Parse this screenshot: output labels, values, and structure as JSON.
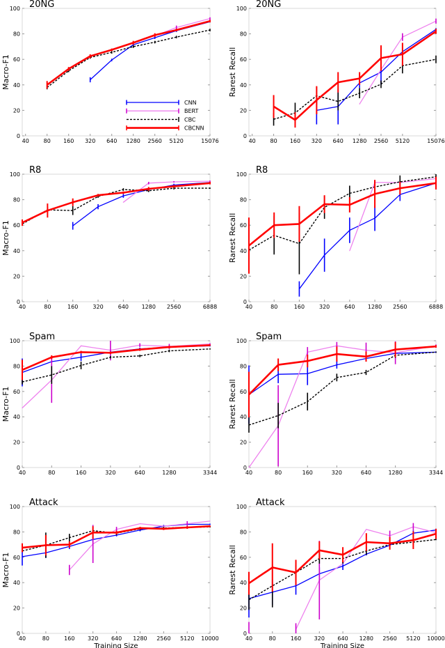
{
  "legend": {
    "location": "lower-right of first panel",
    "entries": [
      {
        "name": "CNN",
        "color": "#0000ff",
        "style": "solid"
      },
      {
        "name": "BERT",
        "color": "#ee82ee",
        "error_color": "#cc00cc",
        "style": "solid"
      },
      {
        "name": "CBC",
        "color": "#000000",
        "style": "dashed"
      },
      {
        "name": "CBCNN",
        "color": "#ff0000",
        "style": "solid-thick"
      }
    ]
  },
  "chart_data": [
    {
      "type": "line",
      "title": "20NG",
      "ylabel": "Macro-F1",
      "xlabel": "",
      "xscale": "log",
      "xlim": [
        36,
        15076
      ],
      "ylim": [
        0,
        100
      ],
      "grid": false,
      "x": [
        40,
        80,
        160,
        320,
        640,
        1280,
        2560,
        5120,
        15076
      ],
      "xtick_labels": [
        "40",
        "80",
        "160",
        "320",
        "640",
        "1280",
        "2560",
        "5120",
        "15076"
      ],
      "yticks": [
        0,
        20,
        40,
        60,
        80,
        100
      ],
      "series": [
        {
          "name": "CNN",
          "values": [
            null,
            null,
            null,
            44,
            59.5,
            71.5,
            77,
            82.5,
            89.5
          ],
          "err": [
            null,
            null,
            null,
            2,
            1,
            1,
            1,
            1,
            0.5
          ]
        },
        {
          "name": "BERT",
          "values": [
            null,
            null,
            null,
            null,
            null,
            null,
            78.5,
            85,
            92
          ],
          "err": [
            null,
            null,
            null,
            null,
            null,
            null,
            1,
            1.5,
            1
          ]
        },
        {
          "name": "CBC",
          "values": [
            null,
            38,
            51,
            61.5,
            65.5,
            70,
            73.5,
            77.5,
            83
          ],
          "err": [
            null,
            1.5,
            1,
            1,
            1,
            1,
            1,
            1,
            1
          ]
        },
        {
          "name": "CBCNN",
          "values": [
            null,
            40,
            52.5,
            62.5,
            67.5,
            73,
            79,
            83,
            90
          ],
          "err": [
            null,
            3,
            1.5,
            1.5,
            1,
            1.5,
            1.5,
            1,
            1
          ]
        }
      ]
    },
    {
      "type": "line",
      "title": "20NG",
      "ylabel": "Rarest Recall",
      "xlabel": "",
      "xscale": "log",
      "xlim": [
        36,
        15076
      ],
      "ylim": [
        0,
        100
      ],
      "grid": false,
      "x": [
        40,
        80,
        160,
        320,
        640,
        1280,
        2560,
        5120,
        15076
      ],
      "xtick_labels": [
        "40",
        "80",
        "160",
        "320",
        "640",
        "1280",
        "2560",
        "5120",
        "15076"
      ],
      "yticks": [
        0,
        20,
        40,
        60,
        80,
        100
      ],
      "series": [
        {
          "name": "CNN",
          "values": [
            null,
            null,
            null,
            20,
            23,
            41.5,
            50,
            66,
            83.5
          ],
          "err": [
            null,
            null,
            null,
            11,
            14,
            4,
            10,
            6,
            1
          ]
        },
        {
          "name": "BERT",
          "values": [
            null,
            null,
            null,
            null,
            null,
            25,
            52,
            77.5,
            90
          ],
          "err": [
            null,
            null,
            null,
            null,
            null,
            null,
            null,
            3,
            2
          ]
        },
        {
          "name": "CBC",
          "values": [
            null,
            13,
            18,
            31.5,
            27,
            33.5,
            40.5,
            55,
            60
          ],
          "err": [
            null,
            5,
            8,
            7,
            7,
            4,
            3,
            6,
            3
          ]
        },
        {
          "name": "CBCNN",
          "values": [
            null,
            23,
            12.5,
            28,
            42,
            45,
            61,
            64,
            82
          ],
          "err": [
            null,
            9,
            6,
            11,
            8,
            5,
            10,
            9,
            2
          ]
        }
      ]
    },
    {
      "type": "line",
      "title": "R8",
      "ylabel": "Macro-F1",
      "xlabel": "",
      "xscale": "log",
      "xlim": [
        40,
        6888
      ],
      "ylim": [
        0,
        100
      ],
      "grid": false,
      "x": [
        40,
        80,
        160,
        320,
        640,
        1280,
        2560,
        6888
      ],
      "xtick_labels": [
        "40",
        "80",
        "160",
        "320",
        "640",
        "1280",
        "2560",
        "6888"
      ],
      "yticks": [
        0,
        20,
        40,
        60,
        80,
        100
      ],
      "series": [
        {
          "name": "CNN",
          "values": [
            null,
            null,
            59.5,
            74.5,
            83,
            88,
            91.5,
            93.5
          ],
          "err": [
            null,
            null,
            3,
            2,
            1.5,
            1,
            1,
            0.5
          ]
        },
        {
          "name": "BERT",
          "values": [
            null,
            null,
            null,
            null,
            78,
            93,
            94,
            94.5
          ],
          "err": [
            null,
            null,
            null,
            null,
            null,
            1,
            0.5,
            0.5
          ]
        },
        {
          "name": "CBC",
          "values": [
            61,
            72,
            71.5,
            82.5,
            88,
            87,
            89,
            89
          ],
          "err": [
            1,
            2,
            3.5,
            1,
            1,
            1,
            1,
            0.5
          ]
        },
        {
          "name": "CBCNN",
          "values": [
            62,
            71.5,
            78,
            83.5,
            85.5,
            88.5,
            90.5,
            93
          ],
          "err": [
            2.5,
            5.5,
            3,
            1,
            1,
            1.5,
            1,
            1
          ]
        }
      ]
    },
    {
      "type": "line",
      "title": "R8",
      "ylabel": "Rarest Recall",
      "xlabel": "",
      "xscale": "log",
      "xlim": [
        40,
        6888
      ],
      "ylim": [
        0,
        100
      ],
      "grid": false,
      "x": [
        40,
        80,
        160,
        320,
        640,
        1280,
        2560,
        6888
      ],
      "xtick_labels": [
        "40",
        "80",
        "160",
        "320",
        "640",
        "1280",
        "2560",
        "6888"
      ],
      "yticks": [
        0,
        20,
        40,
        60,
        80,
        100
      ],
      "series": [
        {
          "name": "CNN",
          "values": [
            null,
            null,
            10,
            36.5,
            56,
            65.5,
            84,
            93
          ],
          "err": [
            null,
            null,
            6,
            13,
            10,
            10,
            5,
            1
          ]
        },
        {
          "name": "BERT",
          "values": [
            null,
            null,
            null,
            null,
            40,
            93.5,
            93.5,
            96.5
          ],
          "err": [
            null,
            null,
            null,
            null,
            null,
            2,
            1,
            1
          ]
        },
        {
          "name": "CBC",
          "values": [
            40.5,
            52,
            45.5,
            74,
            85,
            90,
            94,
            98
          ],
          "err": [
            15,
            15,
            24,
            9,
            6,
            5,
            5,
            2
          ]
        },
        {
          "name": "CBCNN",
          "values": [
            44,
            60,
            61,
            76.5,
            76,
            84.5,
            89,
            93
          ],
          "err": [
            22,
            10,
            14,
            7,
            6,
            11,
            5,
            5
          ]
        }
      ]
    },
    {
      "type": "line",
      "title": "Spam",
      "ylabel": "Macro-F1",
      "xlabel": "",
      "xscale": "log",
      "xlim": [
        40,
        3344
      ],
      "ylim": [
        0,
        100
      ],
      "grid": false,
      "x": [
        40,
        80,
        160,
        320,
        640,
        1280,
        3344
      ],
      "xtick_labels": [
        "40",
        "80",
        "160",
        "320",
        "640",
        "1280",
        "3344"
      ],
      "yticks": [
        0,
        20,
        40,
        60,
        80,
        100
      ],
      "series": [
        {
          "name": "CNN",
          "values": [
            75,
            83.5,
            87,
            91,
            93.5,
            95,
            96
          ],
          "err": [
            11,
            1,
            3,
            1,
            1,
            1,
            0.5
          ]
        },
        {
          "name": "BERT",
          "values": [
            47,
            69,
            96,
            92.5,
            96.5,
            95.5,
            97.5
          ],
          "err": [
            null,
            18,
            null,
            8,
            1.5,
            2,
            0.5
          ]
        },
        {
          "name": "CBC",
          "values": [
            67.5,
            73,
            80.5,
            87,
            88,
            92,
            93.5
          ],
          "err": [
            2,
            7,
            3,
            1,
            1,
            1,
            0.5
          ]
        },
        {
          "name": "CBCNN",
          "values": [
            77,
            87,
            91,
            90.5,
            93,
            95,
            96.5
          ],
          "err": [
            8,
            1.5,
            1,
            1,
            1,
            1,
            0.5
          ]
        }
      ]
    },
    {
      "type": "line",
      "title": "Spam",
      "ylabel": "Rarest Recall",
      "xlabel": "",
      "xscale": "log",
      "xlim": [
        40,
        3344
      ],
      "ylim": [
        0,
        100
      ],
      "grid": false,
      "x": [
        40,
        80,
        160,
        320,
        640,
        1280,
        3344
      ],
      "xtick_labels": [
        "40",
        "80",
        "160",
        "320",
        "640",
        "1280",
        "3344"
      ],
      "yticks": [
        0,
        20,
        40,
        60,
        80,
        100
      ],
      "series": [
        {
          "name": "CNN",
          "values": [
            57.5,
            73.5,
            74,
            81,
            86,
            90,
            91
          ],
          "err": [
            23,
            7,
            9,
            3,
            2,
            2,
            0.5
          ]
        },
        {
          "name": "BERT",
          "values": [
            0,
            33,
            91,
            96,
            92.5,
            90.5,
            96
          ],
          "err": [
            null,
            32,
            4,
            3,
            6,
            9,
            1
          ]
        },
        {
          "name": "CBC",
          "values": [
            33.5,
            41,
            52,
            71,
            75,
            88.5,
            91
          ],
          "err": [
            6,
            10,
            7,
            3,
            2,
            2,
            0.5
          ]
        },
        {
          "name": "CBCNN",
          "values": [
            57.5,
            81,
            84,
            89.5,
            87.5,
            93,
            95.5
          ],
          "err": [
            18,
            5,
            5,
            6,
            4,
            6,
            1
          ]
        }
      ]
    },
    {
      "type": "line",
      "title": "Attack",
      "ylabel": "Macro-F1",
      "xlabel": "Training Size",
      "xscale": "log",
      "xlim": [
        40,
        10000
      ],
      "ylim": [
        0,
        100
      ],
      "grid": false,
      "x": [
        40,
        80,
        160,
        320,
        640,
        1280,
        2560,
        5120,
        10000
      ],
      "xtick_labels": [
        "40",
        "80",
        "160",
        "320",
        "640",
        "1280",
        "2560",
        "5120",
        "10000"
      ],
      "yticks": [
        0,
        20,
        40,
        60,
        80,
        100
      ],
      "series": [
        {
          "name": "CNN",
          "values": [
            60.5,
            63.5,
            68.5,
            74,
            77.5,
            81.5,
            84.5,
            86,
            86
          ],
          "err": [
            7,
            4,
            2,
            2,
            1,
            1,
            1,
            1,
            0.5
          ]
        },
        {
          "name": "BERT",
          "values": [
            null,
            null,
            50,
            70.5,
            82,
            86.5,
            84.5,
            86.5,
            88.5
          ],
          "err": [
            null,
            null,
            4,
            15,
            2,
            null,
            null,
            2,
            null
          ]
        },
        {
          "name": "CBC",
          "values": [
            65,
            69.5,
            75.5,
            81,
            79,
            82.5,
            83,
            83.5,
            84
          ],
          "err": [
            null,
            10,
            3,
            1,
            1.5,
            1,
            1,
            1,
            0.5
          ]
        },
        {
          "name": "CBCNN",
          "values": [
            67.5,
            69.5,
            70,
            79.5,
            79.5,
            83,
            82.5,
            83.5,
            84.5
          ],
          "err": [
            3.5,
            8,
            2.5,
            5,
            1.5,
            1,
            1,
            1,
            0.5
          ]
        }
      ]
    },
    {
      "type": "line",
      "title": "Attack",
      "ylabel": "Rarest Recall",
      "xlabel": "Training Size",
      "xscale": "log",
      "xlim": [
        40,
        10000
      ],
      "ylim": [
        0,
        100
      ],
      "grid": false,
      "x": [
        40,
        80,
        160,
        320,
        640,
        1280,
        2560,
        5120,
        10000
      ],
      "xtick_labels": [
        "40",
        "80",
        "160",
        "320",
        "640",
        "1280",
        "2560",
        "5120",
        "10000"
      ],
      "yticks": [
        0,
        20,
        40,
        60,
        80,
        100
      ],
      "series": [
        {
          "name": "CNN",
          "values": [
            27.5,
            32.5,
            37.5,
            47,
            53,
            62.5,
            69.5,
            79,
            81.5
          ],
          "err": [
            15,
            10,
            7,
            5,
            3,
            1,
            1,
            2,
            1
          ]
        },
        {
          "name": "BERT",
          "values": [
            4,
            null,
            3,
            42,
            55,
            82,
            77,
            84,
            79.5
          ],
          "err": [
            5,
            null,
            5,
            31,
            null,
            null,
            4,
            3,
            null
          ]
        },
        {
          "name": "CBC",
          "values": [
            26.5,
            37.5,
            48,
            59,
            59,
            65,
            70,
            72,
            74
          ],
          "err": [
            8,
            17,
            6,
            4,
            4,
            3,
            2,
            2,
            0.5
          ]
        },
        {
          "name": "CBCNN",
          "values": [
            39.5,
            52,
            48,
            65.5,
            62,
            72,
            71,
            73.5,
            78.5
          ],
          "err": [
            9,
            19,
            10,
            7,
            6,
            7,
            5,
            7,
            4
          ]
        }
      ]
    }
  ]
}
